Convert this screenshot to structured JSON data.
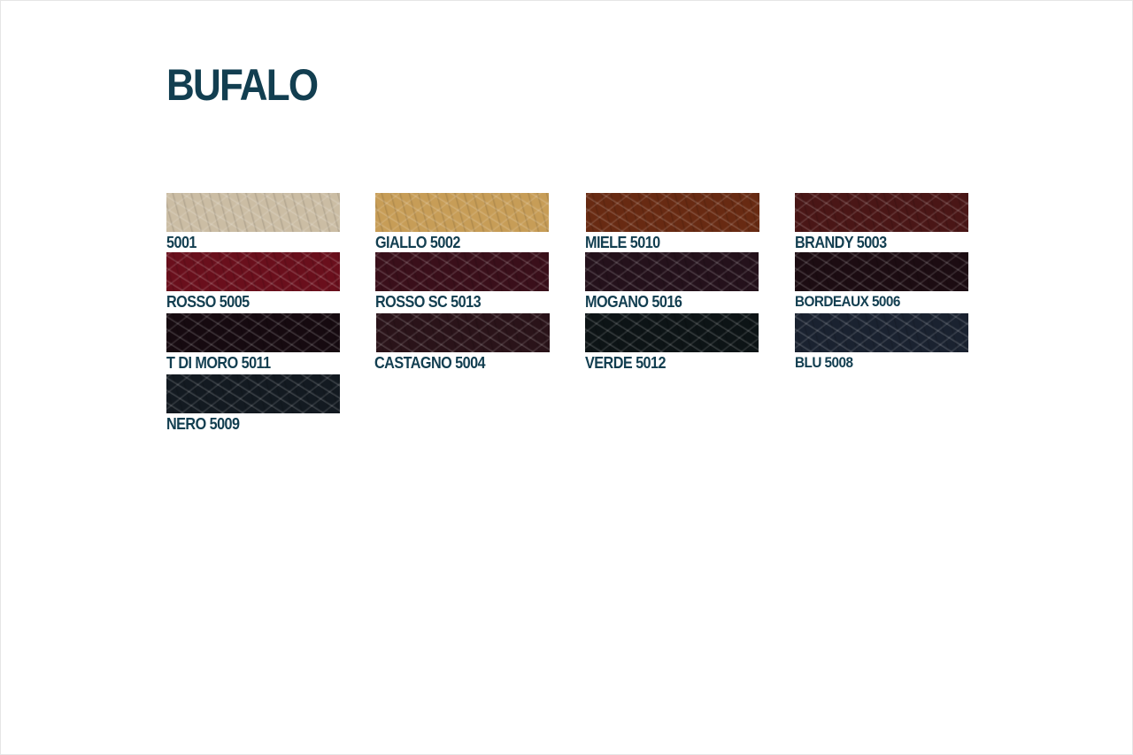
{
  "title": "BUFALO",
  "swatches": [
    {
      "label": "5001",
      "color": "#cbbda4"
    },
    {
      "label": "GIALLO 5002",
      "color": "#c79d57"
    },
    {
      "label": "MIELE 5010",
      "color": "#682a12"
    },
    {
      "label": "BRANDY 5003",
      "color": "#4a1616"
    },
    {
      "label": "ROSSO 5005",
      "color": "#6a0f1c"
    },
    {
      "label": "ROSSO SC 5013",
      "color": "#3a0f1a"
    },
    {
      "label": "MOGANO 5016",
      "color": "#24111b"
    },
    {
      "label": "BORDEAUX 5006",
      "color": "#1c0c12"
    },
    {
      "label": "T DI MORO 5011",
      "color": "#160a10"
    },
    {
      "label": "CASTAGNO 5004",
      "color": "#2a1319"
    },
    {
      "label": "VERDE 5012",
      "color": "#0d1416"
    },
    {
      "label": "BLU 5008",
      "color": "#1a2230"
    },
    {
      "label": "NERO 5009",
      "color": "#131a21"
    }
  ]
}
